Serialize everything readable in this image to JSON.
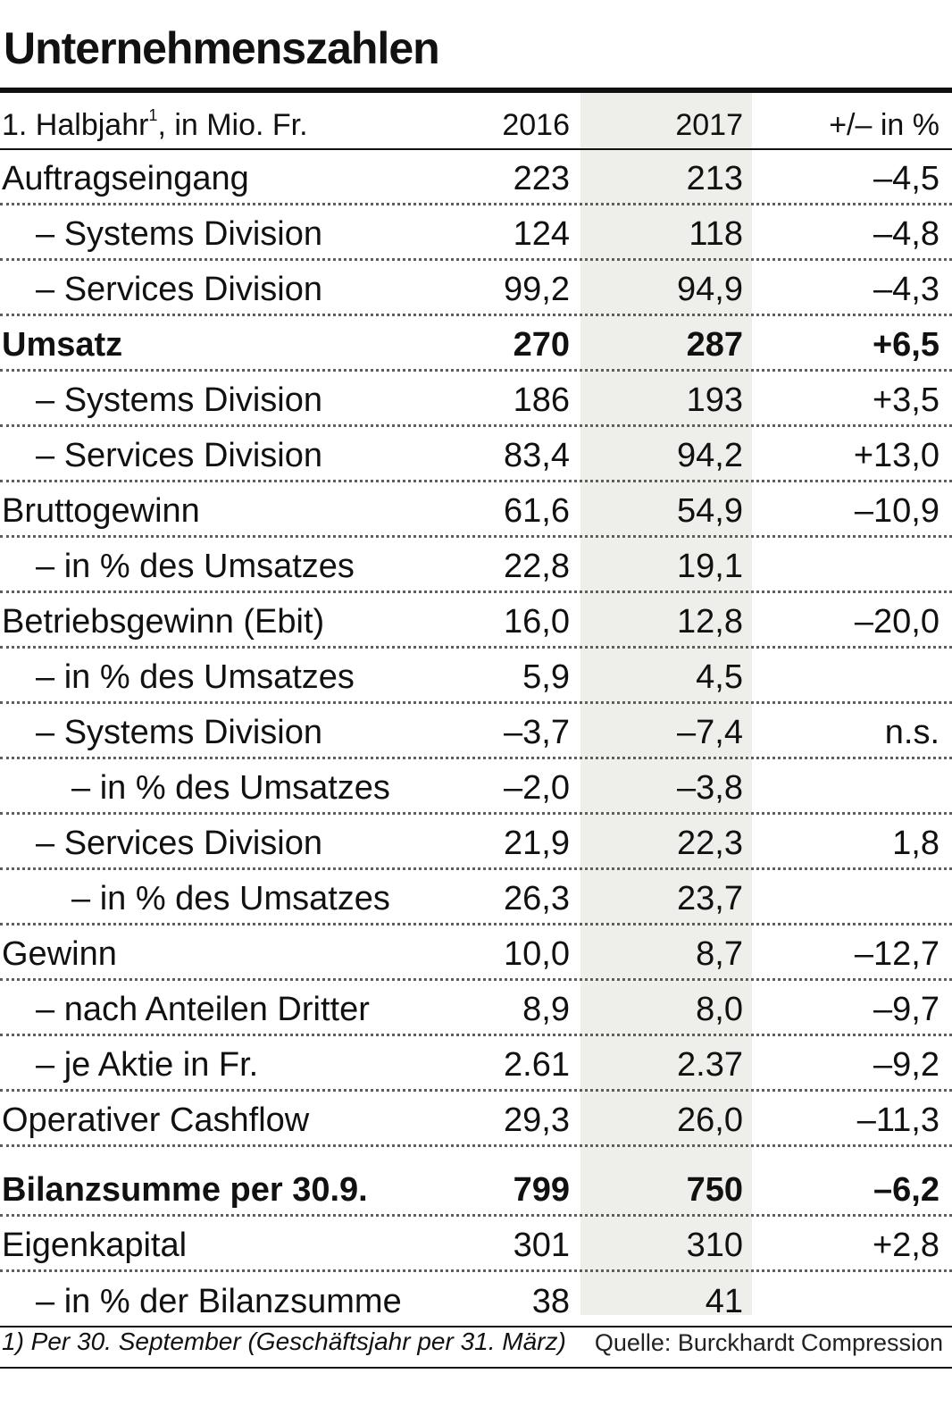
{
  "title": "Unternehmenszahlen",
  "header": {
    "label_prefix": "1. Halbjahr",
    "footnote_marker": "1",
    "label_suffix": ", in Mio. Fr.",
    "col_2016": "2016",
    "col_2017": "2017",
    "col_change": "+/– in %"
  },
  "rows": [
    {
      "label": "Auftragseingang",
      "v2016": "223",
      "v2017": "213",
      "change": "–4,5"
    },
    {
      "label": "– Systems Division",
      "v2016": "124",
      "v2017": "118",
      "change": "–4,8"
    },
    {
      "label": "– Services Division",
      "v2016": "99,2",
      "v2017": "94,9",
      "change": "–4,3"
    },
    {
      "label": "Umsatz",
      "v2016": "270",
      "v2017": "287",
      "change": "+6,5"
    },
    {
      "label": "– Systems Division",
      "v2016": "186",
      "v2017": "193",
      "change": "+3,5"
    },
    {
      "label": "– Services Division",
      "v2016": "83,4",
      "v2017": "94,2",
      "change": "+13,0"
    },
    {
      "label": "Bruttogewinn",
      "v2016": "61,6",
      "v2017": "54,9",
      "change": "–10,9"
    },
    {
      "label": "– in % des Umsatzes",
      "v2016": "22,8",
      "v2017": "19,1",
      "change": ""
    },
    {
      "label": "Betriebsgewinn (Ebit)",
      "v2016": "16,0",
      "v2017": "12,8",
      "change": "–20,0"
    },
    {
      "label": "– in % des Umsatzes",
      "v2016": "5,9",
      "v2017": "4,5",
      "change": ""
    },
    {
      "label": "– Systems Division",
      "v2016": "–3,7",
      "v2017": "–7,4",
      "change": "n.s."
    },
    {
      "label": "– in % des Umsatzes",
      "v2016": "–2,0",
      "v2017": "–3,8",
      "change": ""
    },
    {
      "label": "– Services Division",
      "v2016": "21,9",
      "v2017": "22,3",
      "change": "1,8"
    },
    {
      "label": "– in % des Umsatzes",
      "v2016": "26,3",
      "v2017": "23,7",
      "change": ""
    },
    {
      "label": "Gewinn",
      "v2016": "10,0",
      "v2017": "8,7",
      "change": "–12,7"
    },
    {
      "label": "– nach Anteilen Dritter",
      "v2016": "8,9",
      "v2017": "8,0",
      "change": "–9,7"
    },
    {
      "label": "– je Aktie in Fr.",
      "v2016": "2.61",
      "v2017": "2.37",
      "change": "–9,2"
    },
    {
      "label": "Operativer Cashflow",
      "v2016": "29,3",
      "v2017": "26,0",
      "change": "–11,3"
    },
    {
      "label": "Bilanzsumme per 30.9.",
      "v2016": "799",
      "v2017": "750",
      "change": "–6,2"
    },
    {
      "label": "Eigenkapital",
      "v2016": "301",
      "v2017": "310",
      "change": "+2,8"
    },
    {
      "label": "– in % der Bilanzsumme",
      "v2016": "38",
      "v2017": "41",
      "change": ""
    }
  ],
  "footer": {
    "footnote": "1) Per 30. September (Geschäftsjahr per 31. März)",
    "source": "Quelle: Burckhardt Compression"
  }
}
